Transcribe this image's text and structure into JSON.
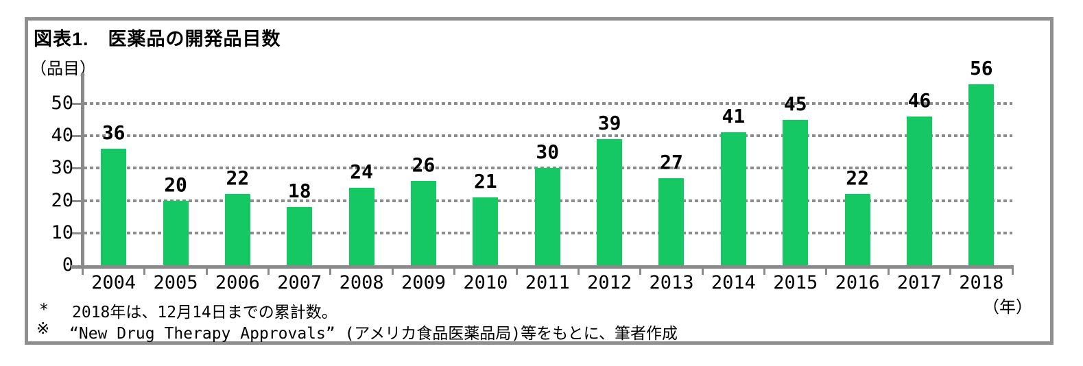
{
  "figure": {
    "title": "図表1.　医薬品の開発品目数",
    "y_axis_unit_label": "（品目）",
    "x_axis_unit_label": "（年）",
    "footnotes": [
      {
        "marker": "*",
        "text": "2018年は、12月14日までの累計数。"
      },
      {
        "marker": "※",
        "text": "“New Drug Therapy Approvals” (アメリカ食品医薬品局)等をもとに、筆者作成"
      }
    ]
  },
  "chart_data": {
    "type": "bar",
    "title": "図表1.　医薬品の開発品目数",
    "categories": [
      "2004",
      "2005",
      "2006",
      "2007",
      "2008",
      "2009",
      "2010",
      "2011",
      "2012",
      "2013",
      "2014",
      "2015",
      "2016",
      "2017",
      "2018"
    ],
    "values": [
      36,
      20,
      22,
      18,
      24,
      26,
      21,
      30,
      39,
      27,
      41,
      45,
      22,
      46,
      56
    ],
    "xlabel": "（年）",
    "ylabel": "（品目）",
    "ylim": [
      0,
      60
    ],
    "yticks": [
      0,
      10,
      20,
      30,
      40,
      50
    ],
    "grid": "horizontal-dotted",
    "legend": "none",
    "value_labels": true,
    "bar_color": "#15C863",
    "axis_color": "#8A8A8A",
    "grid_color": "#8C8C8C"
  }
}
